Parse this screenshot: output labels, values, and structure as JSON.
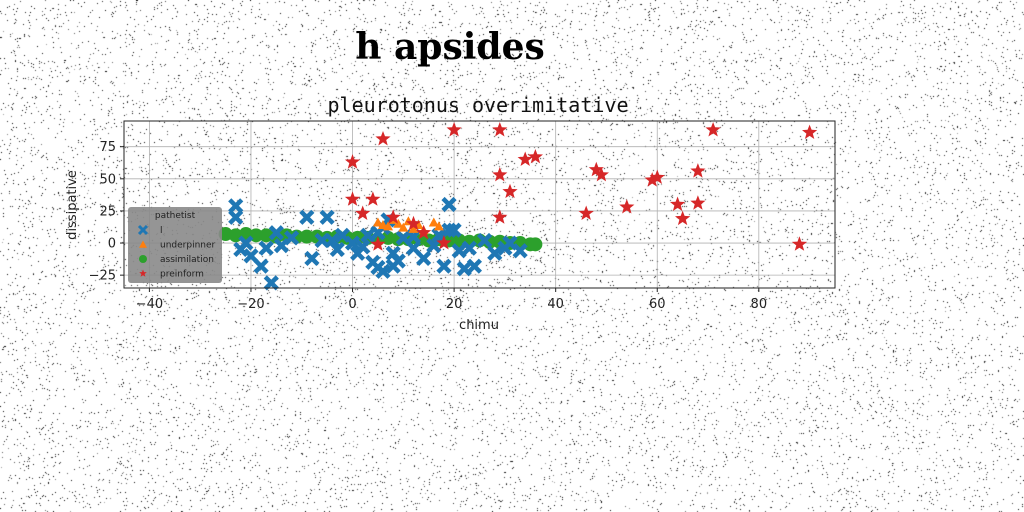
{
  "suptitle": "h apsides",
  "chart_data": {
    "type": "scatter",
    "title": "pleurotonus overimitative",
    "xlabel": "chimu",
    "ylabel": "dissipative",
    "xlim": [
      -45,
      95
    ],
    "ylim": [
      -35,
      95
    ],
    "xticks": [
      -40,
      -20,
      0,
      20,
      40,
      60,
      80
    ],
    "yticks": [
      -25,
      0,
      25,
      50,
      75
    ],
    "grid": true,
    "legend": {
      "title": "pathetist",
      "placement": "left"
    },
    "series": [
      {
        "name": "l",
        "marker": "x",
        "color": "#1f77b4",
        "x": [
          -23,
          -23,
          -22,
          -21,
          -18,
          -16,
          -15,
          -14,
          -12,
          -9,
          -8,
          -5,
          -4,
          -3,
          -2,
          0,
          1,
          2,
          3,
          4,
          5,
          6,
          7,
          8,
          9,
          10,
          12,
          14,
          16,
          17,
          18,
          19,
          20,
          21,
          22,
          23,
          24,
          26,
          28,
          30,
          31,
          33,
          -20,
          -17,
          -6,
          6,
          8,
          12,
          19,
          5
        ],
        "y": [
          29,
          20,
          -5,
          0,
          -18,
          -31,
          8,
          -2,
          4,
          20,
          -12,
          20,
          2,
          -5,
          6,
          0,
          -8,
          -3,
          6,
          -15,
          -19,
          -22,
          18,
          -18,
          -14,
          4,
          5,
          -12,
          -2,
          6,
          -18,
          30,
          10,
          -6,
          -20,
          -4,
          -18,
          2,
          -8,
          -4,
          0,
          -6,
          -10,
          -4,
          2,
          12,
          -8,
          -4,
          10,
          8
        ]
      },
      {
        "name": "underpinner",
        "marker": "^",
        "color": "#ff7f0e",
        "x": [
          5,
          6,
          7,
          8,
          9,
          10,
          11,
          12,
          13,
          14,
          16,
          17
        ],
        "y": [
          16,
          14,
          13,
          18,
          15,
          12,
          17,
          11,
          14,
          10,
          16,
          13
        ]
      },
      {
        "name": "assimilation",
        "marker": "o",
        "color": "#2ca02c",
        "x": [
          -25,
          -23,
          -21,
          -19,
          -17,
          -15,
          -13,
          -11,
          -9,
          -7,
          -5,
          -3,
          -1,
          1,
          3,
          5,
          7,
          9,
          11,
          13,
          15,
          17,
          19,
          21,
          23,
          25,
          27,
          29,
          31,
          33,
          35,
          36
        ],
        "y": [
          7,
          6,
          7,
          6,
          6,
          5,
          6,
          5,
          5,
          5,
          4,
          5,
          4,
          4,
          4,
          3,
          4,
          3,
          3,
          3,
          2,
          3,
          2,
          2,
          1,
          2,
          1,
          1,
          0,
          0,
          -1,
          -1
        ]
      },
      {
        "name": "preinform",
        "marker": "*",
        "color": "#d62728",
        "x": [
          0,
          0,
          2,
          4,
          5,
          6,
          8,
          12,
          14,
          18,
          20,
          29,
          29,
          29,
          31,
          34,
          36,
          46,
          48,
          49,
          54,
          59,
          60,
          64,
          65,
          68,
          68,
          71,
          88,
          90
        ],
        "y": [
          63,
          34,
          23,
          34,
          -1,
          81,
          20,
          15,
          8,
          0,
          88,
          88,
          53,
          20,
          40,
          65,
          67,
          23,
          57,
          53,
          28,
          49,
          51,
          30,
          19,
          56,
          31,
          88,
          -1,
          86
        ]
      }
    ]
  }
}
